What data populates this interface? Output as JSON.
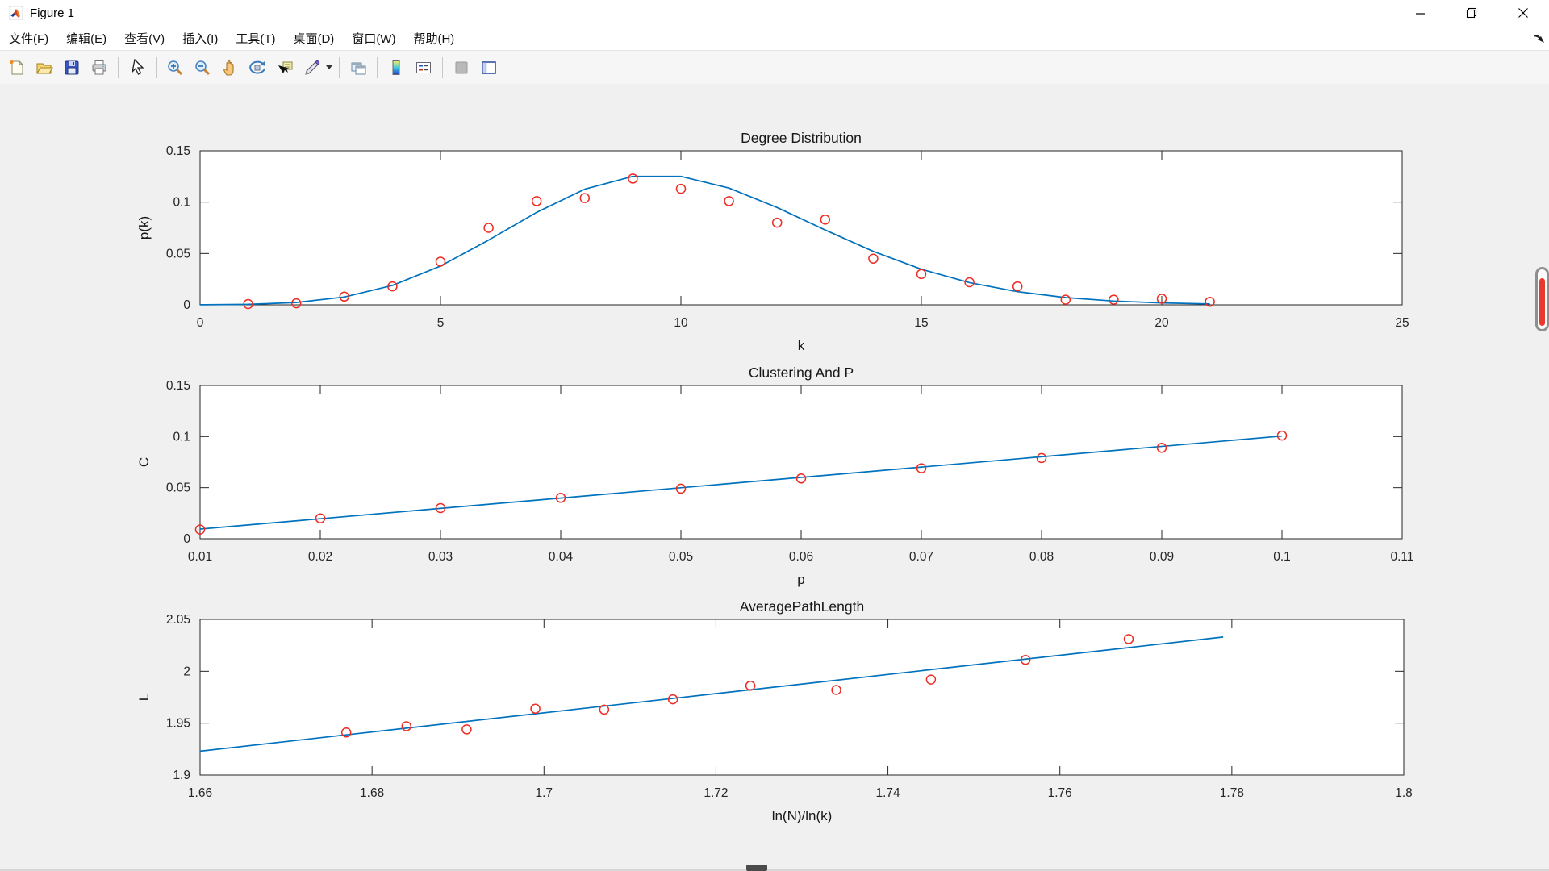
{
  "window": {
    "title": "Figure 1",
    "controls": [
      {
        "icon": "minimize-icon"
      },
      {
        "icon": "restore-icon"
      },
      {
        "icon": "close-icon"
      }
    ]
  },
  "menu": {
    "items": [
      {
        "label": "文件(F)"
      },
      {
        "label": "编辑(E)"
      },
      {
        "label": "查看(V)"
      },
      {
        "label": "插入(I)"
      },
      {
        "label": "工具(T)"
      },
      {
        "label": "桌面(D)"
      },
      {
        "label": "窗口(W)"
      },
      {
        "label": "帮助(H)"
      }
    ],
    "overflow_icon": "menu-overflow-arrow-icon"
  },
  "toolbar": {
    "buttons": [
      {
        "type": "button",
        "icon": "new-figure-icon"
      },
      {
        "type": "button",
        "icon": "open-file-icon"
      },
      {
        "type": "button",
        "icon": "save-figure-icon"
      },
      {
        "type": "button",
        "icon": "print-figure-icon"
      },
      {
        "type": "separator"
      },
      {
        "type": "button",
        "icon": "edit-plot-arrow-icon"
      },
      {
        "type": "separator"
      },
      {
        "type": "button",
        "icon": "zoom-in-icon"
      },
      {
        "type": "button",
        "icon": "zoom-out-icon"
      },
      {
        "type": "button",
        "icon": "pan-hand-icon"
      },
      {
        "type": "button",
        "icon": "rotate-3d-icon"
      },
      {
        "type": "button",
        "icon": "data-cursor-icon"
      },
      {
        "type": "button",
        "icon": "brush-icon",
        "dropdown": true
      },
      {
        "type": "separator"
      },
      {
        "type": "button",
        "icon": "link-plot-icon"
      },
      {
        "type": "separator"
      },
      {
        "type": "button",
        "icon": "insert-colorbar-icon"
      },
      {
        "type": "button",
        "icon": "insert-legend-icon"
      },
      {
        "type": "separator"
      },
      {
        "type": "button",
        "icon": "hide-plot-tools-icon"
      },
      {
        "type": "button",
        "icon": "show-plot-tools-icon"
      }
    ]
  },
  "colors": {
    "line": "#0072bd",
    "marker": "#ee2c24",
    "axis": "#262626",
    "text": "#171717",
    "plot_bg": "#ffffff",
    "canvas_bg": "#f0f0f0",
    "scroll_fill": "#e8392e"
  },
  "chart_data": [
    {
      "type": "line+scatter",
      "title": "Degree Distribution",
      "xlabel": "k",
      "ylabel": "p(k)",
      "xlim": [
        0,
        25
      ],
      "ylim": [
        0,
        0.15
      ],
      "xticks": {
        "values": [
          0,
          5,
          10,
          15,
          20,
          25
        ],
        "labels": [
          "0",
          "5",
          "10",
          "15",
          "20",
          "25"
        ]
      },
      "yticks": {
        "values": [
          0,
          0.05,
          0.1,
          0.15
        ],
        "labels": [
          "0",
          "0.05",
          "0.1",
          "0.15"
        ]
      },
      "scatter": {
        "x": [
          1,
          2,
          3,
          4,
          5,
          6,
          7,
          8,
          9,
          10,
          11,
          12,
          13,
          14,
          15,
          16,
          17,
          18,
          19,
          20,
          21
        ],
        "y": [
          0.0008,
          0.0015,
          0.008,
          0.018,
          0.042,
          0.075,
          0.101,
          0.104,
          0.123,
          0.113,
          0.101,
          0.08,
          0.083,
          0.045,
          0.03,
          0.022,
          0.018,
          0.005,
          0.005,
          0.006,
          0.003
        ]
      },
      "line": {
        "x": [
          0,
          1,
          2,
          3,
          4,
          5,
          6,
          7,
          8,
          9,
          10,
          11,
          12,
          13,
          14,
          15,
          16,
          17,
          18,
          19,
          20,
          21
        ],
        "y": [
          5e-05,
          0.00045,
          0.0023,
          0.0076,
          0.0189,
          0.0378,
          0.0631,
          0.0901,
          0.1126,
          0.1251,
          0.1251,
          0.1137,
          0.0948,
          0.0729,
          0.0521,
          0.0347,
          0.0217,
          0.0128,
          0.0071,
          0.0037,
          0.0019,
          0.0009
        ]
      }
    },
    {
      "type": "line+scatter",
      "title": "Clustering And P",
      "xlabel": "p",
      "ylabel": "C",
      "xlim": [
        0.01,
        0.11
      ],
      "ylim": [
        0,
        0.15
      ],
      "xticks": {
        "values": [
          0.01,
          0.02,
          0.03,
          0.04,
          0.05,
          0.06,
          0.07,
          0.08,
          0.09,
          0.1,
          0.11
        ],
        "labels": [
          "0.01",
          "0.02",
          "0.03",
          "0.04",
          "0.05",
          "0.06",
          "0.07",
          "0.08",
          "0.09",
          "0.1",
          "0.11"
        ]
      },
      "yticks": {
        "values": [
          0,
          0.05,
          0.1,
          0.15
        ],
        "labels": [
          "0",
          "0.05",
          "0.1",
          "0.15"
        ]
      },
      "scatter": {
        "x": [
          0.01,
          0.02,
          0.03,
          0.04,
          0.05,
          0.06,
          0.07,
          0.08,
          0.09,
          0.1
        ],
        "y": [
          0.009,
          0.02,
          0.03,
          0.04,
          0.049,
          0.059,
          0.069,
          0.079,
          0.089,
          0.101
        ]
      },
      "line": {
        "x": [
          0.01,
          0.1
        ],
        "y": [
          0.0095,
          0.1005
        ]
      }
    },
    {
      "type": "line+scatter",
      "title": "AveragePathLength",
      "xlabel": "ln(N)/ln(k)",
      "ylabel": "L",
      "xlim": [
        1.66,
        1.8
      ],
      "ylim": [
        1.9,
        2.05
      ],
      "xticks": {
        "values": [
          1.66,
          1.68,
          1.7,
          1.72,
          1.74,
          1.76,
          1.78,
          1.8
        ],
        "labels": [
          "1.66",
          "1.68",
          "1.7",
          "1.72",
          "1.74",
          "1.76",
          "1.78",
          "1.8"
        ]
      },
      "yticks": {
        "values": [
          1.9,
          1.95,
          2,
          2.05
        ],
        "labels": [
          "1.9",
          "1.95",
          "2",
          "2.05"
        ]
      },
      "scatter": {
        "x": [
          1.677,
          1.684,
          1.691,
          1.699,
          1.707,
          1.715,
          1.724,
          1.734,
          1.745,
          1.756,
          1.768
        ],
        "y": [
          1.941,
          1.947,
          1.944,
          1.964,
          1.963,
          1.973,
          1.986,
          1.982,
          1.992,
          2.011,
          2.031
        ]
      },
      "line": {
        "x": [
          1.66,
          1.779
        ],
        "y": [
          1.923,
          2.033
        ]
      }
    }
  ]
}
